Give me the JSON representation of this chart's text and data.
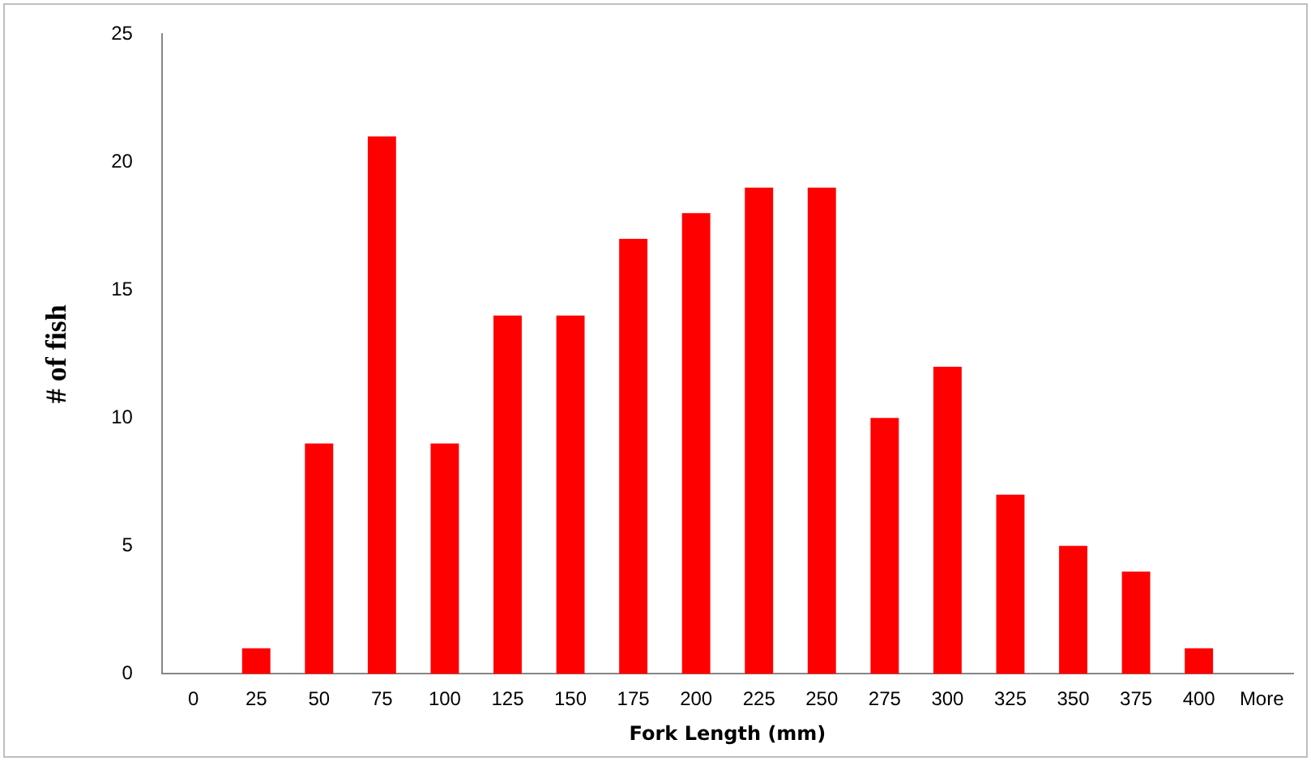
{
  "chart_data": {
    "type": "bar",
    "xlabel": "Fork Length (mm)",
    "ylabel": "# of fish",
    "categories": [
      "0",
      "25",
      "50",
      "75",
      "100",
      "125",
      "150",
      "175",
      "200",
      "225",
      "250",
      "275",
      "300",
      "325",
      "350",
      "375",
      "400",
      "More"
    ],
    "values": [
      0,
      1,
      9,
      21,
      9,
      14,
      14,
      17,
      18,
      19,
      19,
      10,
      12,
      7,
      5,
      4,
      1,
      0
    ],
    "color": "#ff0000",
    "ylim": [
      0,
      25
    ],
    "yticks": [
      0,
      5,
      10,
      15,
      20,
      25
    ],
    "grid": false,
    "legend": false
  }
}
